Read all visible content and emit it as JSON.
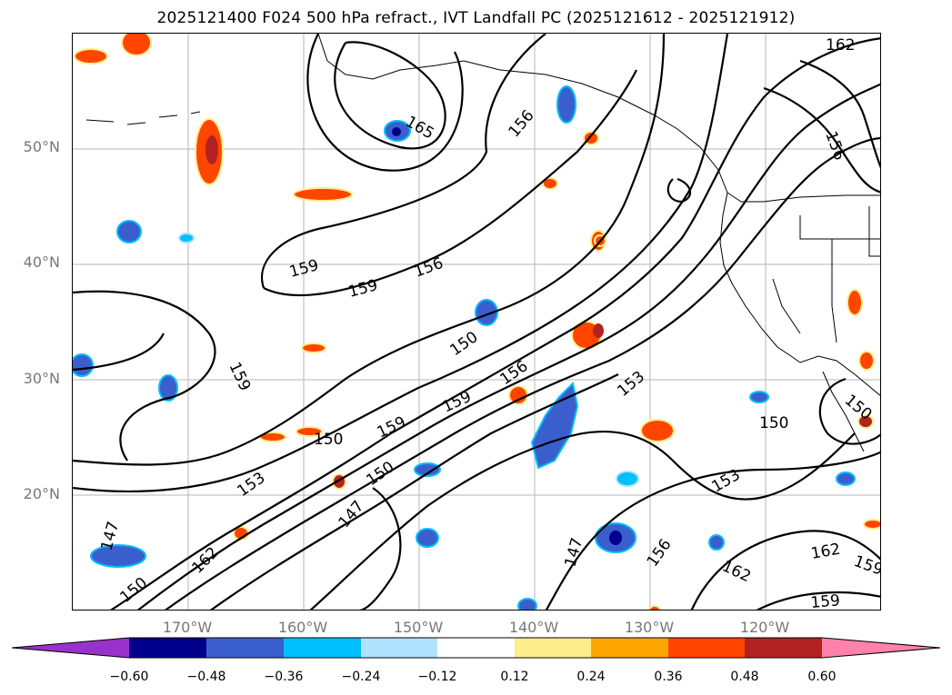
{
  "title": "2025121400 F024 500 hPa refract., IVT Landfall PC (2025121612 - 2025121912)",
  "lat_labels": [
    "50°N",
    "40°N",
    "30°N",
    "20°N"
  ],
  "lon_labels": [
    "170°W",
    "160°W",
    "150°W",
    "140°W",
    "130°W",
    "120°W"
  ],
  "contour_labels": [
    "162",
    "165",
    "156",
    "156",
    "159",
    "159",
    "156",
    "150",
    "159",
    "156",
    "159",
    "159",
    "150",
    "153",
    "150",
    "150",
    "153",
    "147",
    "153",
    "147",
    "162",
    "150",
    "147",
    "156",
    "162",
    "162",
    "159",
    "159",
    "150"
  ],
  "colorbar": {
    "ticks": [
      "−0.60",
      "−0.48",
      "−0.36",
      "−0.24",
      "−0.12",
      "0.12",
      "0.24",
      "0.36",
      "0.48",
      "0.60"
    ],
    "colors": [
      "#9932cc",
      "#00008b",
      "#3a5fcd",
      "#00bfff",
      "#b0e2ff",
      "#ffffff",
      "#ffec8b",
      "#ffa500",
      "#ff4500",
      "#b22222",
      "#ff82ab"
    ]
  }
}
